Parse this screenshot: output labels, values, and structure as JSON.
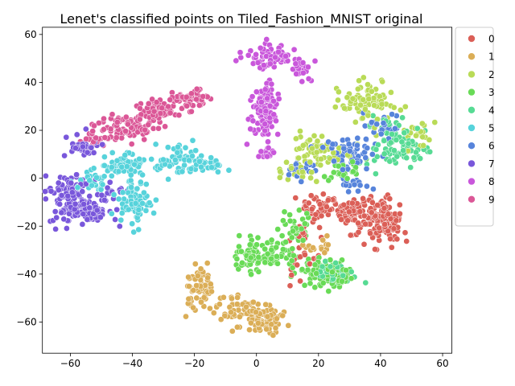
{
  "chart_data": {
    "type": "scatter",
    "title": "Lenet's classified points on Tiled_Fashion_MNIST original",
    "xlabel": "",
    "ylabel": "",
    "xlim": [
      -69,
      63
    ],
    "ylim": [
      -73,
      63
    ],
    "xticks": [
      -60,
      -40,
      -20,
      0,
      20,
      40,
      60
    ],
    "yticks": [
      -60,
      -40,
      -20,
      0,
      20,
      40,
      60
    ],
    "grid": false,
    "legend_position": "outside-right-top",
    "series": [
      {
        "name": "0",
        "color": "#db5f57",
        "clusters": [
          {
            "cx": 40,
            "cy": -18,
            "rx": 5,
            "ry": 7,
            "n": 130
          },
          {
            "cx": 30,
            "cy": -15,
            "rx": 5,
            "ry": 4,
            "n": 60
          },
          {
            "cx": 20,
            "cy": -12,
            "rx": 5,
            "ry": 4,
            "n": 45
          },
          {
            "cx": 15,
            "cy": -30,
            "rx": 4,
            "ry": 9,
            "n": 25
          }
        ]
      },
      {
        "name": "1",
        "color": "#dbae57",
        "clusters": [
          {
            "cx": -18,
            "cy": -47,
            "rx": 4,
            "ry": 7,
            "n": 70
          },
          {
            "cx": -6,
            "cy": -54,
            "rx": 6,
            "ry": 5,
            "n": 60
          },
          {
            "cx": 3,
            "cy": -60,
            "rx": 4,
            "ry": 5,
            "n": 60
          },
          {
            "cx": 20,
            "cy": -28,
            "rx": 4,
            "ry": 3,
            "n": 15
          }
        ]
      },
      {
        "name": "2",
        "color": "#b9db57",
        "clusters": [
          {
            "cx": 36,
            "cy": 31,
            "rx": 6,
            "ry": 6,
            "n": 85
          },
          {
            "cx": 20,
            "cy": 12,
            "rx": 6,
            "ry": 5,
            "n": 55
          },
          {
            "cx": 52,
            "cy": 18,
            "rx": 4,
            "ry": 4,
            "n": 25
          },
          {
            "cx": 13,
            "cy": 4,
            "rx": 4,
            "ry": 3,
            "n": 20
          }
        ]
      },
      {
        "name": "3",
        "color": "#69db57",
        "clusters": [
          {
            "cx": 3,
            "cy": -32,
            "rx": 7,
            "ry": 6,
            "n": 120
          },
          {
            "cx": 22,
            "cy": -40,
            "rx": 6,
            "ry": 4,
            "n": 80
          },
          {
            "cx": 12,
            "cy": -20,
            "rx": 4,
            "ry": 4,
            "n": 35
          },
          {
            "cx": 28,
            "cy": 5,
            "rx": 5,
            "ry": 4,
            "n": 25
          }
        ]
      },
      {
        "name": "4",
        "color": "#57db94",
        "clusters": [
          {
            "cx": 44,
            "cy": 15,
            "rx": 6,
            "ry": 8,
            "n": 75
          },
          {
            "cx": 24,
            "cy": -40,
            "rx": 5,
            "ry": 3,
            "n": 45
          },
          {
            "cx": 50,
            "cy": 11,
            "rx": 4,
            "ry": 3,
            "n": 20
          }
        ]
      },
      {
        "name": "5",
        "color": "#57d3db",
        "clusters": [
          {
            "cx": -42,
            "cy": 5,
            "rx": 5,
            "ry": 4,
            "n": 55
          },
          {
            "cx": -24,
            "cy": 8,
            "rx": 6,
            "ry": 4,
            "n": 75
          },
          {
            "cx": -39,
            "cy": -10,
            "rx": 4,
            "ry": 6,
            "n": 75
          },
          {
            "cx": -52,
            "cy": -1,
            "rx": 4,
            "ry": 4,
            "n": 30
          },
          {
            "cx": -14,
            "cy": 5,
            "rx": 3,
            "ry": 2,
            "n": 20
          }
        ]
      },
      {
        "name": "6",
        "color": "#5784db",
        "clusters": [
          {
            "cx": 30,
            "cy": 10,
            "rx": 6,
            "ry": 5,
            "n": 55
          },
          {
            "cx": 40,
            "cy": 22,
            "rx": 4,
            "ry": 4,
            "n": 30
          },
          {
            "cx": 14,
            "cy": 3,
            "rx": 3,
            "ry": 3,
            "n": 20
          },
          {
            "cx": 33,
            "cy": -3,
            "rx": 4,
            "ry": 3,
            "n": 15
          }
        ]
      },
      {
        "name": "7",
        "color": "#7957db",
        "clusters": [
          {
            "cx": -60,
            "cy": -8,
            "rx": 5,
            "ry": 8,
            "n": 130
          },
          {
            "cx": -52,
            "cy": -14,
            "rx": 4,
            "ry": 4,
            "n": 50
          },
          {
            "cx": -56,
            "cy": 13,
            "rx": 4,
            "ry": 3,
            "n": 35
          },
          {
            "cx": -47,
            "cy": -5,
            "rx": 3,
            "ry": 3,
            "n": 15
          }
        ]
      },
      {
        "name": "8",
        "color": "#c957db",
        "clusters": [
          {
            "cx": 5,
            "cy": 51,
            "rx": 6,
            "ry": 3,
            "n": 75
          },
          {
            "cx": 2,
            "cy": 28,
            "rx": 3,
            "ry": 10,
            "n": 110
          },
          {
            "cx": 14,
            "cy": 45,
            "rx": 3,
            "ry": 3,
            "n": 20
          },
          {
            "cx": 4,
            "cy": 11,
            "rx": 1.5,
            "ry": 2,
            "n": 12
          }
        ]
      },
      {
        "name": "9",
        "color": "#db5797",
        "clusters": [
          {
            "cx": -42,
            "cy": 21,
            "rx": 6,
            "ry": 4,
            "n": 90
          },
          {
            "cx": -32,
            "cy": 28,
            "rx": 5,
            "ry": 4,
            "n": 65
          },
          {
            "cx": -22,
            "cy": 33,
            "rx": 5,
            "ry": 3,
            "n": 55
          },
          {
            "cx": -53,
            "cy": 16,
            "rx": 3,
            "ry": 2,
            "n": 25
          }
        ]
      }
    ]
  }
}
